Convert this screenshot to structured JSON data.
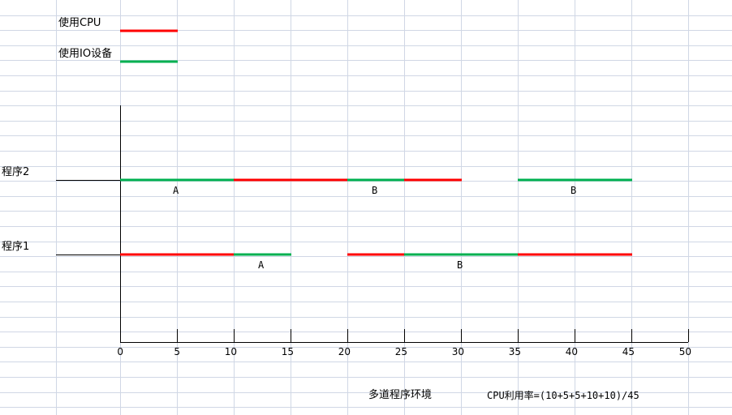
{
  "legend": {
    "items": [
      {
        "label": "使用CPU",
        "color": "#ff0000"
      },
      {
        "label": "使用IO设备",
        "color": "#00b050"
      }
    ]
  },
  "footer": {
    "environment": "多道程序环境",
    "formula": "CPU利用率=(10+5+5+10+10)/45"
  },
  "colors": {
    "cpu": "#ff0000",
    "io": "#00b050",
    "grid": "#d0d7e5",
    "axis": "#000000"
  },
  "chart_data": {
    "type": "gantt",
    "xlim": [
      0,
      50
    ],
    "x_ticks": [
      "0",
      "5",
      "10",
      "15",
      "20",
      "25",
      "30",
      "35",
      "40",
      "45",
      "50"
    ],
    "grid": true,
    "legend_position": "top-left",
    "rows": [
      {
        "name": "程序2",
        "segments": [
          {
            "start": 0,
            "end": 10,
            "kind": "io",
            "label": "A"
          },
          {
            "start": 10,
            "end": 20,
            "kind": "cpu",
            "label": ""
          },
          {
            "start": 20,
            "end": 25,
            "kind": "io",
            "label": "B"
          },
          {
            "start": 25,
            "end": 30,
            "kind": "cpu",
            "label": ""
          },
          {
            "start": 35,
            "end": 45,
            "kind": "io",
            "label": "B"
          }
        ]
      },
      {
        "name": "程序1",
        "segments": [
          {
            "start": 0,
            "end": 10,
            "kind": "cpu",
            "label": ""
          },
          {
            "start": 10,
            "end": 15,
            "kind": "io",
            "label": "A"
          },
          {
            "start": 20,
            "end": 25,
            "kind": "cpu",
            "label": ""
          },
          {
            "start": 25,
            "end": 35,
            "kind": "io",
            "label": "B"
          },
          {
            "start": 35,
            "end": 45,
            "kind": "cpu",
            "label": ""
          }
        ]
      }
    ]
  }
}
